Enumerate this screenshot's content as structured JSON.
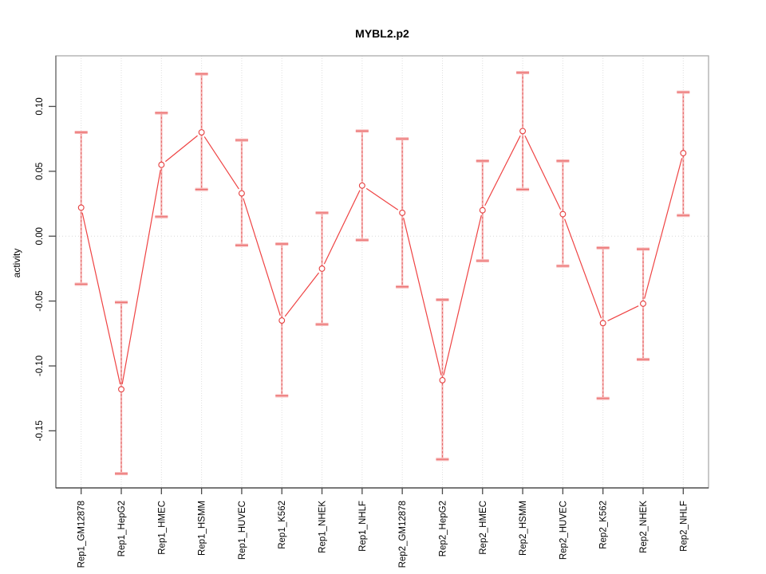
{
  "chart_data": {
    "type": "line",
    "title": "MYBL2.p2",
    "xlabel": "",
    "ylabel": "activity",
    "legend_position": "none",
    "marker": "open-circle",
    "error_bars": true,
    "grid": {
      "vertical_dotted_at_categories": true,
      "horizontal_dotted_at_zero": true
    },
    "categories": [
      "Rep1_GM12878",
      "Rep1_HepG2",
      "Rep1_HMEC",
      "Rep1_HSMM",
      "Rep1_HUVEC",
      "Rep1_K562",
      "Rep1_NHEK",
      "Rep1_NHLF",
      "Rep2_GM12878",
      "Rep2_HepG2",
      "Rep2_HMEC",
      "Rep2_HSMM",
      "Rep2_HUVEC",
      "Rep2_K562",
      "Rep2_NHEK",
      "Rep2_NHLF"
    ],
    "series": [
      {
        "name": "activity",
        "values": [
          0.022,
          -0.118,
          0.055,
          0.08,
          0.033,
          -0.065,
          -0.025,
          0.039,
          0.018,
          -0.111,
          0.02,
          0.081,
          0.017,
          -0.067,
          -0.052,
          0.064
        ],
        "error_upper": [
          0.08,
          -0.051,
          0.095,
          0.125,
          0.074,
          -0.006,
          0.018,
          0.081,
          0.075,
          -0.049,
          0.058,
          0.126,
          0.058,
          -0.009,
          -0.01,
          0.111
        ],
        "error_lower": [
          -0.037,
          -0.183,
          0.015,
          0.036,
          -0.007,
          -0.123,
          -0.068,
          -0.003,
          -0.039,
          -0.172,
          -0.019,
          0.036,
          -0.023,
          -0.125,
          -0.095,
          0.016
        ]
      }
    ],
    "yticks": [
      "0.10",
      "0.05",
      "0.00",
      "-0.05",
      "-0.10",
      "-0.15"
    ],
    "ylim": [
      -0.194,
      0.139
    ],
    "colors": {
      "line": "#ef4343",
      "point_stroke": "#e53e3e",
      "point_fill": "#ffffff",
      "error_stem_halo": "#f5b4b4",
      "error_stem_dash": "#e25757",
      "error_cap_halo": "#f7b7b7",
      "error_cap_core": "#ea6a6a",
      "grid": "#dedede",
      "zero_line": "#d8d8d8",
      "box": "#ababab",
      "left_axis": "#6b6b6b",
      "bottom_axis": "#383838",
      "tick": "#4a4a4a",
      "text": "#000000"
    }
  }
}
